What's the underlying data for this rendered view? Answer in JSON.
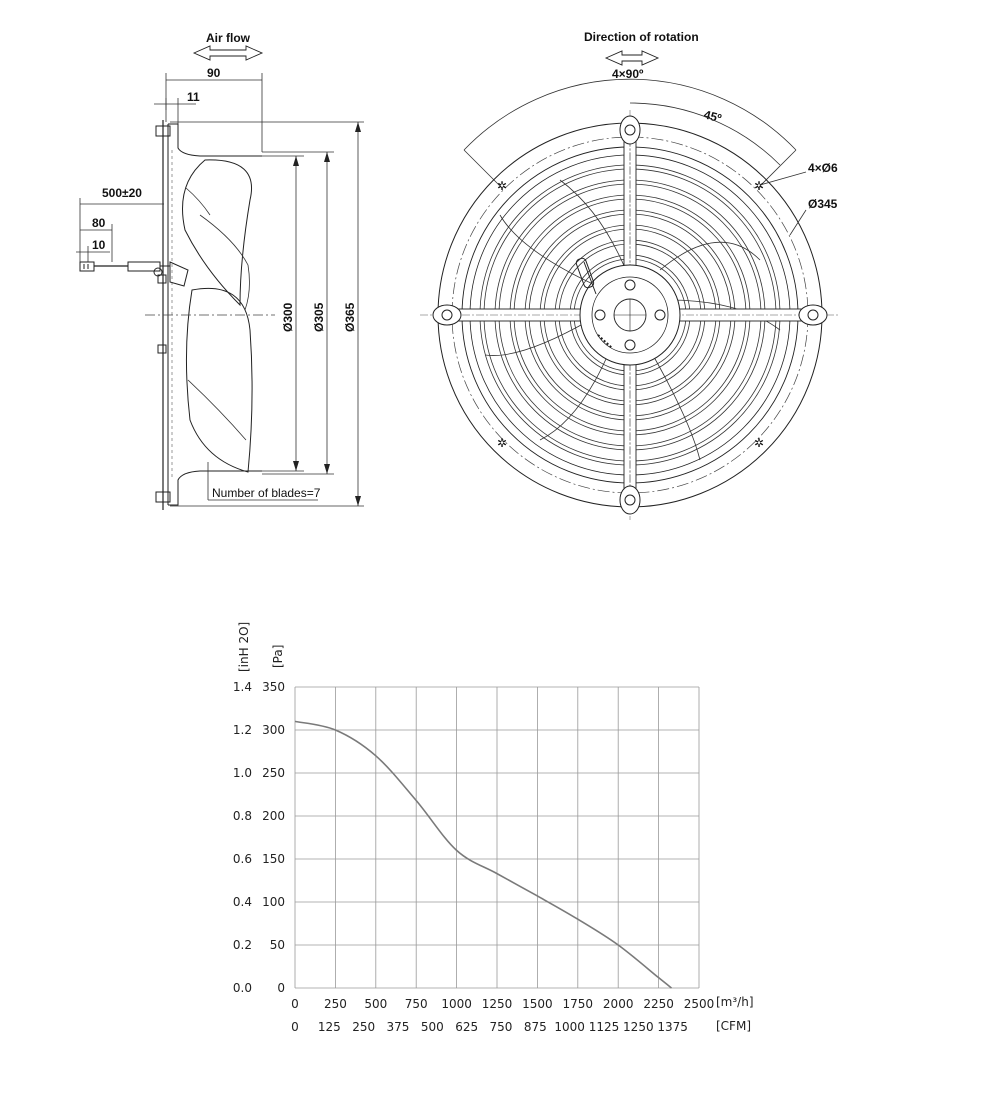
{
  "side_view": {
    "air_flow": "Air flow",
    "dims": {
      "d90": "90",
      "d11": "11",
      "cable": "500±20",
      "d80": "80",
      "d10": "10",
      "dia300": "Ø300",
      "dia305": "Ø305",
      "dia365": "Ø365"
    },
    "blades_note": "Number of blades=7"
  },
  "front_view": {
    "rotation": "Direction of rotation",
    "angle_4x90": "4×90º",
    "angle_45": "45º",
    "holes": "4×Ø6",
    "bolt_circle": "Ø345"
  },
  "chart_data": {
    "type": "line",
    "x": [
      0,
      250,
      500,
      750,
      1000,
      1250,
      1500,
      1750,
      2000,
      2250,
      2330
    ],
    "series": [
      {
        "values": [
          310,
          300,
          270,
          218,
          160,
          133,
          107,
          80,
          50,
          12,
          0
        ]
      }
    ],
    "xlim": [
      0,
      2500
    ],
    "ylim": [
      0,
      350
    ],
    "x_ticks": [
      "0",
      "250",
      "500",
      "750",
      "1000",
      "1250",
      "1500",
      "1750",
      "2000",
      "2250",
      "2500"
    ],
    "x2_ticks": [
      "0",
      "125",
      "250",
      "375",
      "500",
      "625",
      "750",
      "875",
      "1000",
      "1125",
      "1250",
      "1375"
    ],
    "y_ticks": [
      "0",
      "50",
      "100",
      "150",
      "200",
      "250",
      "300",
      "350"
    ],
    "y2_ticks": [
      "0.0",
      "0.2",
      "0.4",
      "0.6",
      "0.8",
      "1.0",
      "1.2",
      "1.4"
    ],
    "xlabel": "[m³/h]",
    "x2label": "[CFM]",
    "ylabel": "[Pa]",
    "y2label": "[inH 2O]",
    "grid": true,
    "line_color": "#7a7a7a"
  }
}
